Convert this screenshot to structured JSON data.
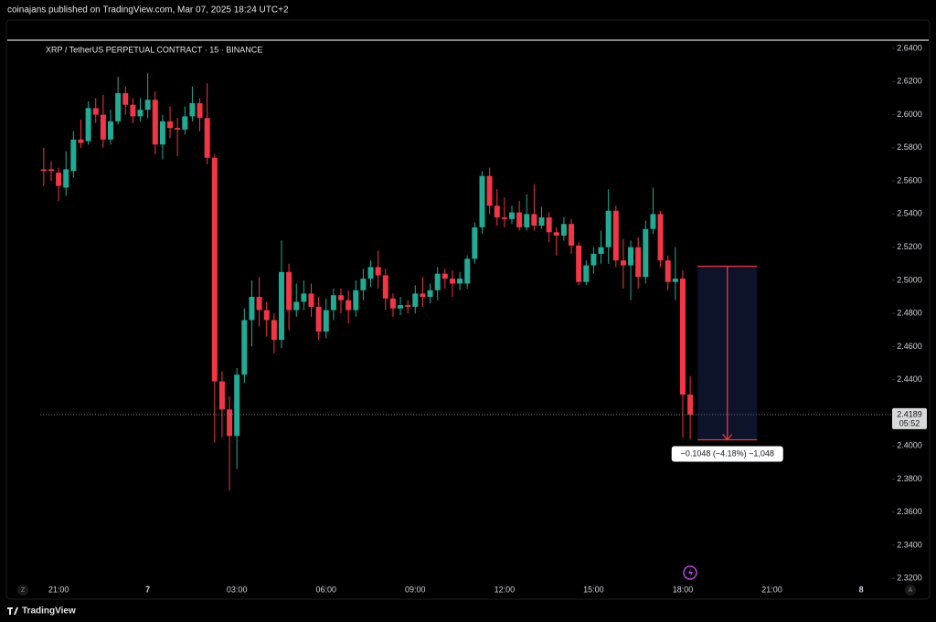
{
  "header": "coinajans published on TradingView.com, Mar 07, 2025 18:24 UTC+2",
  "footer": "TradingView",
  "chart_data": {
    "type": "candlestick",
    "title": "XRP / TetherUS PERPETUAL CONTRACT · 15 · BINANCE",
    "up_color": "#22ab94",
    "down_color": "#f23645",
    "open": [
      2.567,
      2.567,
      2.565,
      2.556,
      2.566,
      2.585,
      2.584,
      2.604,
      2.6,
      2.585,
      2.596,
      2.613,
      2.606,
      2.599,
      2.603,
      2.609,
      2.582,
      2.596,
      2.592,
      2.591,
      2.599,
      2.607,
      2.598,
      2.574,
      2.439,
      2.422,
      2.406,
      2.443,
      2.476,
      2.49,
      2.482,
      2.476,
      2.464,
      2.505,
      2.482,
      2.487,
      2.492,
      2.484,
      2.469,
      2.482,
      2.491,
      2.488,
      2.482,
      2.494,
      2.501,
      2.508,
      2.503,
      2.489,
      2.483,
      2.485,
      2.484,
      2.492,
      2.49,
      2.494,
      2.504,
      2.501,
      2.498,
      2.498,
      2.513,
      2.532,
      2.563,
      2.545,
      2.538,
      2.537,
      2.541,
      2.532,
      2.54,
      2.533,
      2.538,
      2.529,
      2.527,
      2.534,
      2.521,
      2.499,
      2.509,
      2.516,
      2.52,
      2.542,
      2.512,
      2.509,
      2.52,
      2.502,
      2.531,
      2.54,
      2.512,
      2.499,
      2.501,
      2.431
    ],
    "high": [
      2.58,
      2.572,
      2.568,
      2.578,
      2.59,
      2.597,
      2.608,
      2.61,
      2.612,
      2.603,
      2.623,
      2.617,
      2.61,
      2.61,
      2.625,
      2.614,
      2.6,
      2.605,
      2.598,
      2.605,
      2.617,
      2.61,
      2.619,
      2.576,
      2.445,
      2.43,
      2.447,
      2.483,
      2.5,
      2.502,
      2.487,
      2.48,
      2.524,
      2.51,
      2.498,
      2.5,
      2.498,
      2.49,
      2.489,
      2.495,
      2.495,
      2.494,
      2.5,
      2.507,
      2.512,
      2.518,
      2.507,
      2.492,
      2.49,
      2.488,
      2.497,
      2.502,
      2.498,
      2.508,
      2.507,
      2.506,
      2.505,
      2.515,
      2.535,
      2.566,
      2.568,
      2.555,
      2.55,
      2.545,
      2.548,
      2.552,
      2.558,
      2.544,
      2.541,
      2.532,
      2.538,
      2.537,
      2.523,
      2.512,
      2.52,
      2.53,
      2.555,
      2.545,
      2.525,
      2.524,
      2.526,
      2.536,
      2.556,
      2.542,
      2.515,
      2.52,
      2.506,
      2.442
    ],
    "low": [
      2.557,
      2.56,
      2.548,
      2.551,
      2.562,
      2.58,
      2.582,
      2.595,
      2.58,
      2.582,
      2.594,
      2.6,
      2.595,
      2.596,
      2.598,
      2.576,
      2.573,
      2.586,
      2.575,
      2.588,
      2.596,
      2.59,
      2.57,
      2.402,
      2.405,
      2.373,
      2.386,
      2.438,
      2.46,
      2.472,
      2.466,
      2.456,
      2.459,
      2.47,
      2.478,
      2.482,
      2.478,
      2.464,
      2.465,
      2.476,
      2.48,
      2.474,
      2.478,
      2.488,
      2.496,
      2.495,
      2.482,
      2.478,
      2.479,
      2.48,
      2.48,
      2.484,
      2.486,
      2.488,
      2.495,
      2.49,
      2.494,
      2.495,
      2.51,
      2.528,
      2.54,
      2.533,
      2.532,
      2.534,
      2.53,
      2.53,
      2.53,
      2.531,
      2.523,
      2.515,
      2.524,
      2.516,
      2.497,
      2.497,
      2.504,
      2.51,
      2.51,
      2.508,
      2.495,
      2.488,
      2.495,
      2.498,
      2.528,
      2.508,
      2.494,
      2.488,
      2.405,
      2.404
    ],
    "close": [
      2.566,
      2.566,
      2.557,
      2.567,
      2.585,
      2.583,
      2.604,
      2.6,
      2.585,
      2.596,
      2.613,
      2.606,
      2.599,
      2.603,
      2.609,
      2.582,
      2.596,
      2.592,
      2.591,
      2.599,
      2.607,
      2.598,
      2.574,
      2.439,
      2.422,
      2.406,
      2.443,
      2.476,
      2.49,
      2.482,
      2.476,
      2.464,
      2.505,
      2.482,
      2.487,
      2.492,
      2.484,
      2.469,
      2.482,
      2.491,
      2.488,
      2.482,
      2.494,
      2.501,
      2.508,
      2.503,
      2.489,
      2.483,
      2.485,
      2.484,
      2.492,
      2.49,
      2.494,
      2.504,
      2.501,
      2.498,
      2.501,
      2.513,
      2.532,
      2.563,
      2.545,
      2.538,
      2.537,
      2.541,
      2.532,
      2.54,
      2.533,
      2.538,
      2.529,
      2.527,
      2.534,
      2.521,
      2.499,
      2.509,
      2.516,
      2.52,
      2.542,
      2.512,
      2.509,
      2.52,
      2.502,
      2.531,
      2.54,
      2.512,
      2.499,
      2.501,
      2.431,
      2.4189
    ],
    "xlim": [
      -4.9,
      114.05
    ],
    "xticks": [
      {
        "value": 2,
        "label": "21:00"
      },
      {
        "value": 14,
        "label": "7"
      },
      {
        "value": 26,
        "label": "03:00"
      },
      {
        "value": 38,
        "label": "06:00"
      },
      {
        "value": 50,
        "label": "09:00"
      },
      {
        "value": 62,
        "label": "12:00"
      },
      {
        "value": 74,
        "label": "15:00"
      },
      {
        "value": 86,
        "label": "18:00"
      },
      {
        "value": 98,
        "label": "21:00"
      },
      {
        "value": 110,
        "label": "8"
      }
    ],
    "ylim": [
      2.308,
      2.645
    ],
    "yticks": [
      {
        "value": 2.64,
        "label": "2.6400"
      },
      {
        "value": 2.62,
        "label": "2.6200"
      },
      {
        "value": 2.6,
        "label": "2.6000"
      },
      {
        "value": 2.58,
        "label": "2.5800"
      },
      {
        "value": 2.56,
        "label": "2.5600"
      },
      {
        "value": 2.54,
        "label": "2.5400"
      },
      {
        "value": 2.52,
        "label": "2.5200"
      },
      {
        "value": 2.5,
        "label": "2.5000"
      },
      {
        "value": 2.48,
        "label": "2.4800"
      },
      {
        "value": 2.46,
        "label": "2.4600"
      },
      {
        "value": 2.44,
        "label": "2.4400"
      },
      {
        "value": 2.42,
        "label": "2.4200"
      },
      {
        "value": 2.4,
        "label": "2.4000"
      },
      {
        "value": 2.38,
        "label": "2.3800"
      },
      {
        "value": 2.36,
        "label": "2.3600"
      },
      {
        "value": 2.34,
        "label": "2.3400"
      },
      {
        "value": 2.32,
        "label": "2.3200"
      }
    ],
    "last_price": 2.4189,
    "countdown": "05:52",
    "measure": {
      "label": "−0.1048 (−4.18%) −1,048",
      "from": 2.5085,
      "to": 2.4037,
      "x_from": 88,
      "x_to": 96
    },
    "axis_buttons": [
      "Z",
      "A"
    ]
  }
}
